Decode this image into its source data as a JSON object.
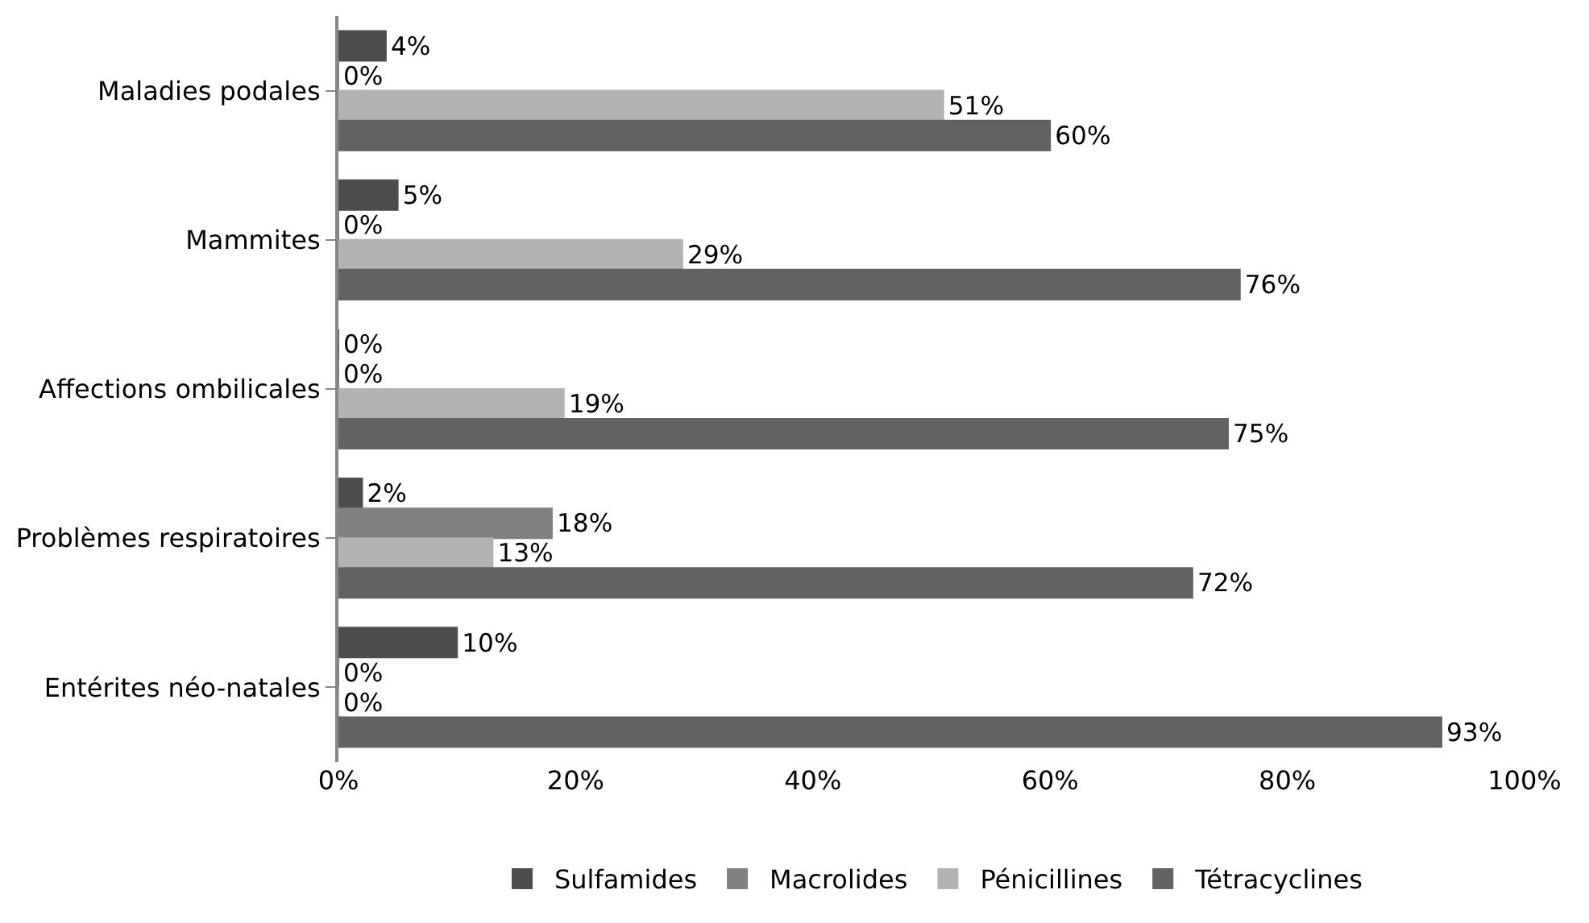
{
  "chart_data": {
    "type": "bar",
    "orientation": "horizontal",
    "categories": [
      "Maladies podales",
      "Mammites",
      "Affections ombilicales",
      "Problèmes respiratoires",
      "Entérites néo-natales"
    ],
    "series": [
      {
        "name": "Sulfamides",
        "color": "#4d4d4d",
        "values": [
          4,
          5,
          0,
          2,
          10
        ],
        "value_labels": [
          "4%",
          "5%",
          "0%",
          "2%",
          "10%"
        ]
      },
      {
        "name": "Macrolides",
        "color": "#808080",
        "values": [
          0,
          0,
          0,
          18,
          0
        ],
        "value_labels": [
          "0%",
          "0%",
          "0%",
          "18%",
          "0%"
        ]
      },
      {
        "name": "Pénicillines",
        "color": "#b2b2b2",
        "values": [
          51,
          29,
          19,
          13,
          0
        ],
        "value_labels": [
          "51%",
          "29%",
          "19%",
          "13%",
          "0%"
        ]
      },
      {
        "name": "Tétracyclines",
        "color": "#626262",
        "values": [
          60,
          76,
          75,
          72,
          93
        ],
        "value_labels": [
          "60%",
          "76%",
          "75%",
          "72%",
          "93%"
        ]
      }
    ],
    "xlim": [
      0,
      100
    ],
    "xticks": [
      {
        "value": 0,
        "label": "0%"
      },
      {
        "value": 20,
        "label": "20%"
      },
      {
        "value": 40,
        "label": "40%"
      },
      {
        "value": 60,
        "label": "60%"
      },
      {
        "value": 80,
        "label": "80%"
      },
      {
        "value": 100,
        "label": "100%"
      }
    ],
    "legend": "bottom"
  }
}
